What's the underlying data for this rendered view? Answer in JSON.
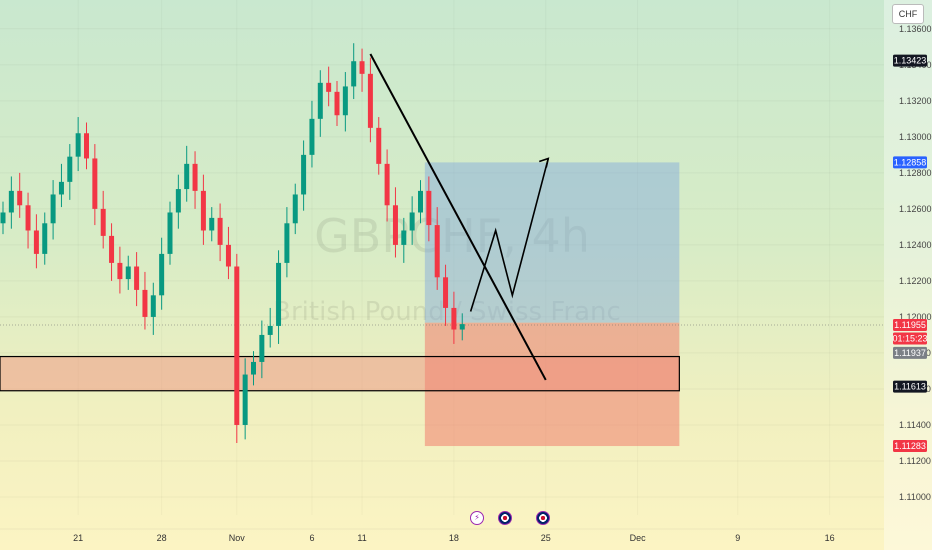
{
  "currency": "CHF",
  "watermark": {
    "symbol": "GBPCHF, 4h",
    "name": "British Pound / Swiss Franc"
  },
  "chart_data": {
    "type": "candlestick",
    "symbol": "GBPCHF",
    "timeframe": "4h",
    "ylim": [
      1.109,
      1.1376
    ],
    "y_ticks": [
      "1.11000",
      "1.11200",
      "1.11400",
      "1.11600",
      "1.11800",
      "1.12000",
      "1.12200",
      "1.12400",
      "1.12600",
      "1.12800",
      "1.13000",
      "1.13200",
      "1.13400",
      "1.13600"
    ],
    "x_ticks": [
      {
        "label": "21",
        "bar": 9
      },
      {
        "label": "28",
        "bar": 19
      },
      {
        "label": "Nov",
        "bar": 28
      },
      {
        "label": "6",
        "bar": 37
      },
      {
        "label": "11",
        "bar": 43
      },
      {
        "label": "18",
        "bar": 54
      },
      {
        "label": "25",
        "bar": 65
      },
      {
        "label": "Dec",
        "bar": 76
      },
      {
        "label": "9",
        "bar": 88
      },
      {
        "label": "16",
        "bar": 99
      }
    ],
    "bar_count": 112,
    "price_tags": [
      {
        "value": "1.13423",
        "price": 1.13423,
        "kind": "high",
        "color": "#131722"
      },
      {
        "value": "1.12858",
        "price": 1.12858,
        "kind": "target",
        "color": "#2962ff"
      },
      {
        "value": "1.11955",
        "price": 1.11955,
        "kind": "last",
        "color": "#f23645"
      },
      {
        "value": "01:15:23",
        "price": 1.1188,
        "kind": "countdown",
        "color": "#f23645"
      },
      {
        "value": "1.11937",
        "price": 1.118,
        "kind": "current",
        "color": "#7b7f86"
      },
      {
        "value": "1.11613",
        "price": 1.11613,
        "kind": "level",
        "color": "#131722"
      },
      {
        "value": "1.11283",
        "price": 1.11283,
        "kind": "stop",
        "color": "#f23645"
      }
    ],
    "support_zone": {
      "top": 1.1178,
      "bottom": 1.1159,
      "start_bar": 0,
      "end_bar": 81
    },
    "position": {
      "entry": 1.11968,
      "target": 1.12858,
      "stop": 1.11283,
      "start_bar": 51,
      "end_bar": 81
    },
    "trendline": {
      "start": {
        "bar": 44,
        "price": 1.1346
      },
      "end": {
        "bar": 65,
        "price": 1.1165
      }
    },
    "projection": [
      {
        "bar": 56,
        "price": 1.1203
      },
      {
        "bar": 59,
        "price": 1.1248
      },
      {
        "bar": 61,
        "price": 1.1212
      },
      {
        "bar": 65.3,
        "price": 1.1288
      }
    ],
    "closes": [
      1.1258,
      1.127,
      1.1262,
      1.1248,
      1.1235,
      1.1252,
      1.1268,
      1.1275,
      1.1289,
      1.1302,
      1.1288,
      1.126,
      1.1245,
      1.123,
      1.1221,
      1.1228,
      1.1215,
      1.12,
      1.1212,
      1.1235,
      1.1258,
      1.1271,
      1.1285,
      1.127,
      1.1248,
      1.1255,
      1.124,
      1.1228,
      1.114,
      1.1168,
      1.1175,
      1.119,
      1.1195,
      1.123,
      1.1252,
      1.1268,
      1.129,
      1.131,
      1.133,
      1.1325,
      1.1312,
      1.1328,
      1.1342,
      1.1335,
      1.1305,
      1.1285,
      1.1262,
      1.124,
      1.1248,
      1.1258,
      1.127,
      1.1251,
      1.1222,
      1.1205,
      1.1193,
      1.1196
    ],
    "event_icons": [
      "lightning",
      "uk-flag",
      "uk-flag"
    ]
  }
}
